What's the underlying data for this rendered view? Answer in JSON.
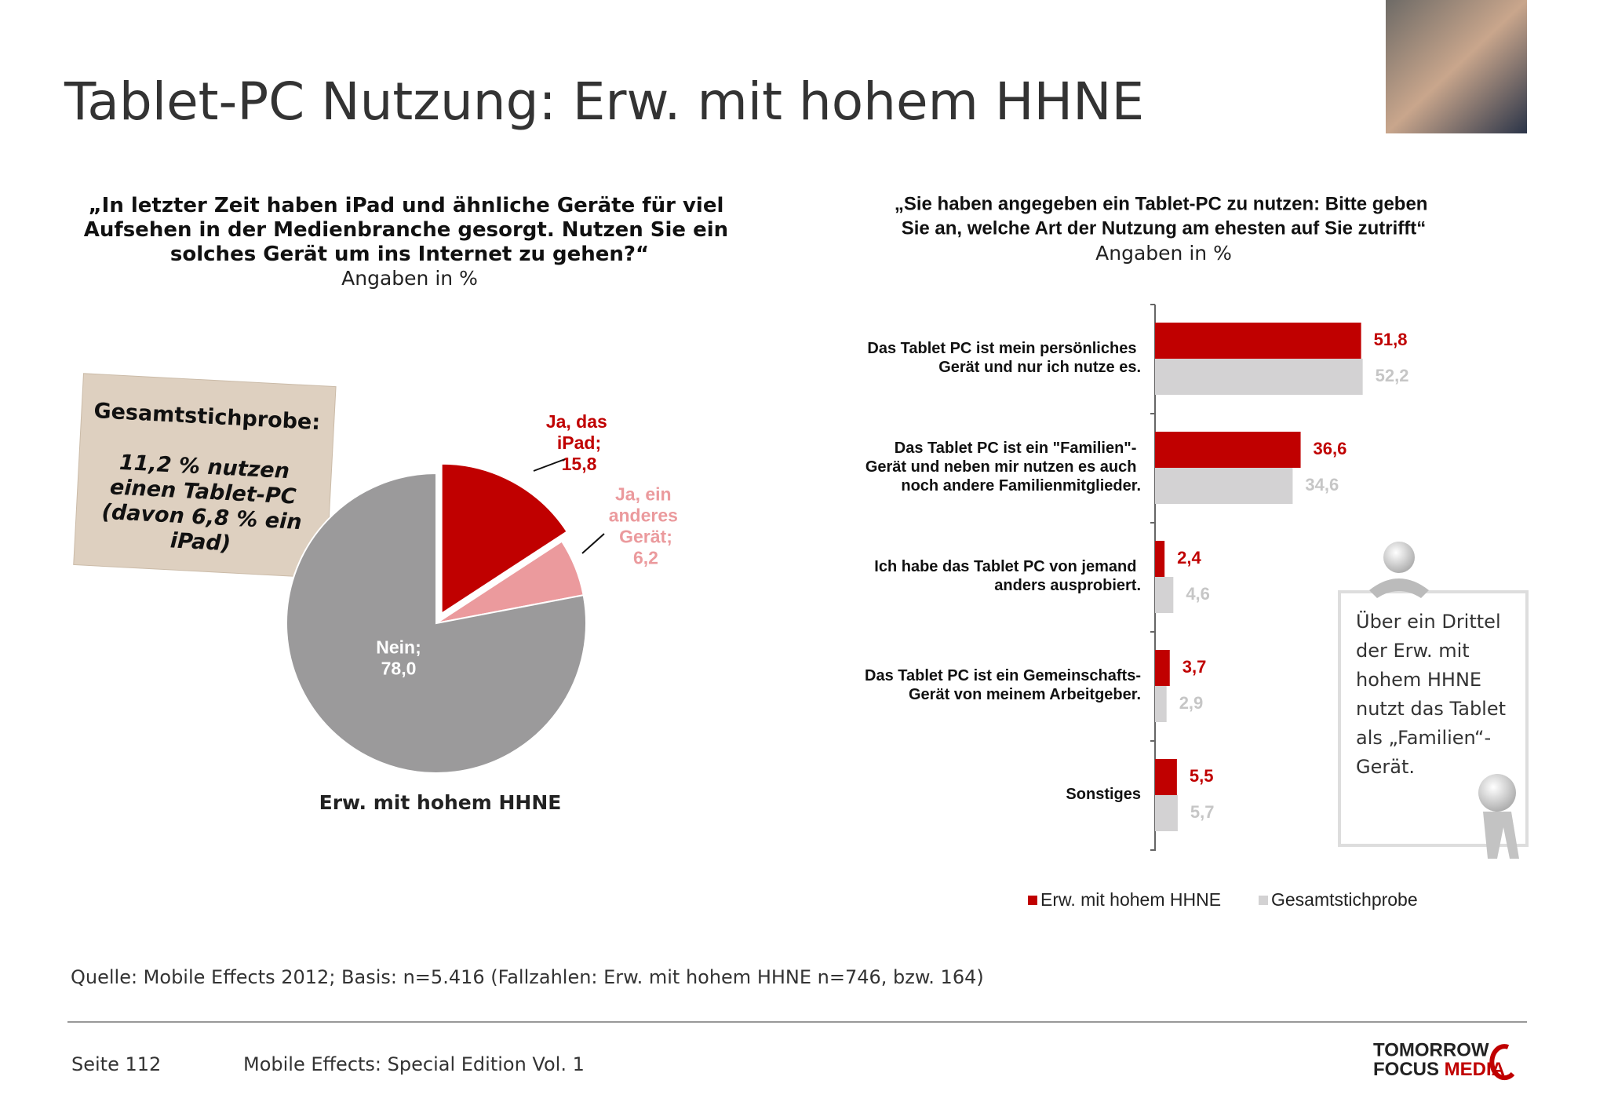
{
  "header": {
    "title": "Tablet-PC Nutzung: Erw. mit hohem HHNE"
  },
  "note": {
    "heading": "Gesamtstichprobe:",
    "lines": [
      "11,2 % nutzen",
      "einen Tablet-PC",
      "(davon 6,8 % ein",
      "iPad)"
    ]
  },
  "callout": {
    "lines": [
      "Über ein Drittel",
      "der Erw. mit",
      "hohem HHNE",
      "nutzt das Tablet",
      "als „Familien“-",
      "Gerät."
    ]
  },
  "footer": {
    "source": "Quelle: Mobile Effects 2012; Basis: n=5.416 (Fallzahlen: Erw. mit hohem HHNE n=746, bzw. 164)",
    "page": "Seite 112",
    "publication": "Mobile Effects: Special Edition Vol. 1"
  },
  "logo": {
    "line1": "TOMORROW",
    "word1": "FOCUS",
    "word2": "MEDIA"
  },
  "chart_data": [
    {
      "type": "pie",
      "title": "„In letzter Zeit haben iPad und ähnliche Geräte für viel Aufsehen in der Medienbranche gesorgt. Nutzen Sie ein solches Gerät um ins Internet zu gehen?“",
      "subtitle": "Angaben in %",
      "caption": "Erw. mit hohem HHNE",
      "categories": [
        "Ja, das iPad;",
        "Ja, ein anderes Gerät;",
        "Nein;"
      ],
      "values": [
        15.8,
        6.2,
        78.0
      ],
      "value_labels": [
        "15,8",
        "6,2",
        "78,0"
      ],
      "colors": [
        "#c00000",
        "#eb9a9d",
        "#9b9a9b"
      ],
      "label_colors": [
        "#c00000",
        "#eb9a9d",
        "#ffffff"
      ]
    },
    {
      "type": "hbar",
      "title": "„Sie haben angegeben ein Tablet-PC zu nutzen: Bitte geben Sie an, welche Art der Nutzung am ehesten auf Sie zutrifft“",
      "subtitle": "Angaben in %",
      "categories": [
        "Das Tablet PC ist mein persönliches Gerät und nur ich nutze es.",
        "Das Tablet PC ist ein \"Familien\"- Gerät und neben mir nutzen es auch noch andere Familienmitglieder.",
        "Ich habe das Tablet PC von jemand anders ausprobiert.",
        "Das Tablet PC ist ein Gemeinschafts-Gerät von meinem Arbeitgeber.",
        "Sonstiges"
      ],
      "series": [
        {
          "name": "Erw. mit hohem HHNE",
          "color": "#c00000",
          "label_color": "#c00000",
          "values": [
            51.8,
            36.6,
            2.4,
            3.7,
            5.5
          ],
          "value_labels": [
            "51,8",
            "36,6",
            "2,4",
            "3,7",
            "5,5"
          ]
        },
        {
          "name": "Gesamtstichprobe",
          "color": "#d3d2d3",
          "label_color": "#c6c6c6",
          "values": [
            52.2,
            34.6,
            4.6,
            2.9,
            5.7
          ],
          "value_labels": [
            "52,2",
            "34,6",
            "4,6",
            "2,9",
            "5,7"
          ]
        }
      ],
      "legend": "bottom"
    }
  ]
}
